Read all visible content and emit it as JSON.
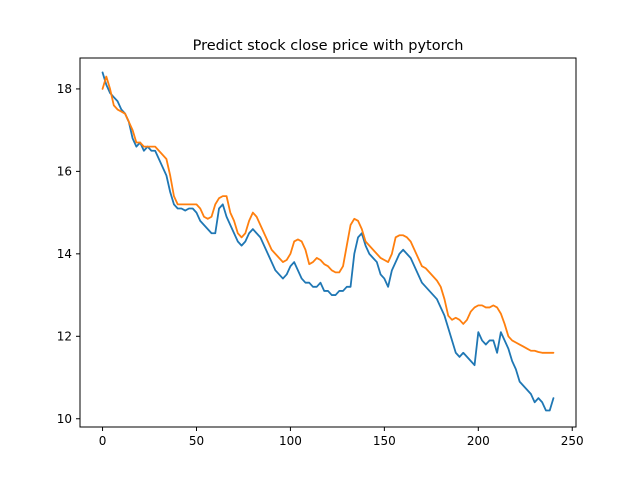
{
  "chart_data": {
    "type": "line",
    "title": "Predict stock close price with pytorch",
    "xlabel": "",
    "ylabel": "",
    "xlim": [
      -12,
      252
    ],
    "ylim": [
      9.8,
      18.75
    ],
    "xticks": [
      0,
      50,
      100,
      150,
      200,
      250
    ],
    "yticks": [
      10,
      12,
      14,
      16,
      18
    ],
    "grid": false,
    "series": [
      {
        "color": "#1f77b4",
        "x": [
          0,
          2,
          4,
          6,
          8,
          10,
          12,
          14,
          16,
          18,
          20,
          22,
          24,
          26,
          28,
          30,
          32,
          34,
          36,
          38,
          40,
          42,
          44,
          46,
          48,
          50,
          52,
          54,
          56,
          58,
          60,
          62,
          64,
          66,
          68,
          70,
          72,
          74,
          76,
          78,
          80,
          82,
          84,
          86,
          88,
          90,
          92,
          94,
          96,
          98,
          100,
          102,
          104,
          106,
          108,
          110,
          112,
          114,
          116,
          118,
          120,
          122,
          124,
          126,
          128,
          130,
          132,
          134,
          136,
          138,
          140,
          142,
          144,
          146,
          148,
          150,
          152,
          154,
          156,
          158,
          160,
          162,
          164,
          166,
          168,
          170,
          172,
          174,
          176,
          178,
          180,
          182,
          184,
          186,
          188,
          190,
          192,
          194,
          196,
          198,
          200,
          202,
          204,
          206,
          208,
          210,
          212,
          214,
          216,
          218,
          220,
          222,
          224,
          226,
          228,
          230,
          232,
          234,
          236,
          238,
          240
        ],
        "y": [
          18.4,
          18.1,
          17.9,
          17.8,
          17.7,
          17.5,
          17.4,
          17.2,
          16.8,
          16.6,
          16.7,
          16.5,
          16.6,
          16.5,
          16.5,
          16.3,
          16.1,
          15.9,
          15.5,
          15.2,
          15.1,
          15.1,
          15.05,
          15.1,
          15.1,
          15.0,
          14.8,
          14.7,
          14.6,
          14.5,
          14.5,
          15.1,
          15.2,
          14.9,
          14.7,
          14.5,
          14.3,
          14.2,
          14.3,
          14.5,
          14.6,
          14.5,
          14.4,
          14.2,
          14.0,
          13.8,
          13.6,
          13.5,
          13.4,
          13.5,
          13.7,
          13.8,
          13.6,
          13.4,
          13.3,
          13.3,
          13.2,
          13.2,
          13.3,
          13.1,
          13.1,
          13.0,
          13.0,
          13.1,
          13.1,
          13.2,
          13.2,
          14.0,
          14.4,
          14.5,
          14.2,
          14.0,
          13.9,
          13.8,
          13.5,
          13.4,
          13.2,
          13.6,
          13.8,
          14.0,
          14.1,
          14.0,
          13.9,
          13.7,
          13.5,
          13.3,
          13.2,
          13.1,
          13.0,
          12.9,
          12.7,
          12.5,
          12.2,
          11.9,
          11.6,
          11.5,
          11.6,
          11.5,
          11.4,
          11.3,
          12.1,
          11.9,
          11.8,
          11.9,
          11.9,
          11.6,
          12.1,
          11.9,
          11.7,
          11.4,
          11.2,
          10.9,
          10.8,
          10.7,
          10.6,
          10.4,
          10.5,
          10.4,
          10.2,
          10.2,
          10.5
        ]
      },
      {
        "color": "#ff7f0e",
        "x": [
          0,
          2,
          4,
          6,
          8,
          10,
          12,
          14,
          16,
          18,
          20,
          22,
          24,
          26,
          28,
          30,
          32,
          34,
          36,
          38,
          40,
          42,
          44,
          46,
          48,
          50,
          52,
          54,
          56,
          58,
          60,
          62,
          64,
          66,
          68,
          70,
          72,
          74,
          76,
          78,
          80,
          82,
          84,
          86,
          88,
          90,
          92,
          94,
          96,
          98,
          100,
          102,
          104,
          106,
          108,
          110,
          112,
          114,
          116,
          118,
          120,
          122,
          124,
          126,
          128,
          130,
          132,
          134,
          136,
          138,
          140,
          142,
          144,
          146,
          148,
          150,
          152,
          154,
          156,
          158,
          160,
          162,
          164,
          166,
          168,
          170,
          172,
          174,
          176,
          178,
          180,
          182,
          184,
          186,
          188,
          190,
          192,
          194,
          196,
          198,
          200,
          202,
          204,
          206,
          208,
          210,
          212,
          214,
          216,
          218,
          220,
          222,
          224,
          226,
          228,
          230,
          232,
          234,
          236,
          238,
          240
        ],
        "y": [
          18.0,
          18.3,
          18.0,
          17.6,
          17.5,
          17.45,
          17.4,
          17.2,
          17.0,
          16.7,
          16.7,
          16.6,
          16.6,
          16.6,
          16.6,
          16.5,
          16.4,
          16.3,
          15.9,
          15.4,
          15.2,
          15.2,
          15.2,
          15.2,
          15.2,
          15.2,
          15.1,
          14.9,
          14.85,
          14.9,
          15.2,
          15.35,
          15.4,
          15.4,
          15.0,
          14.8,
          14.5,
          14.4,
          14.5,
          14.8,
          15.0,
          14.9,
          14.7,
          14.5,
          14.3,
          14.1,
          14.0,
          13.9,
          13.8,
          13.85,
          14.0,
          14.3,
          14.35,
          14.3,
          14.1,
          13.75,
          13.8,
          13.9,
          13.85,
          13.75,
          13.7,
          13.6,
          13.55,
          13.55,
          13.7,
          14.2,
          14.7,
          14.85,
          14.8,
          14.6,
          14.3,
          14.2,
          14.1,
          14.0,
          13.9,
          13.85,
          13.8,
          14.0,
          14.4,
          14.45,
          14.45,
          14.4,
          14.3,
          14.1,
          13.9,
          13.7,
          13.65,
          13.55,
          13.45,
          13.35,
          13.2,
          12.9,
          12.5,
          12.4,
          12.45,
          12.4,
          12.3,
          12.4,
          12.6,
          12.7,
          12.75,
          12.75,
          12.7,
          12.7,
          12.75,
          12.7,
          12.55,
          12.3,
          12.0,
          11.9,
          11.85,
          11.8,
          11.75,
          11.7,
          11.65,
          11.65,
          11.62,
          11.6,
          11.6,
          11.6,
          11.6
        ]
      }
    ]
  }
}
